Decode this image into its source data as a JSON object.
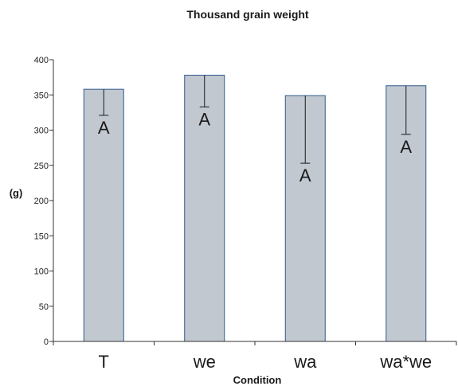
{
  "chart_data": {
    "type": "bar",
    "title": "Thousand grain weight",
    "xlabel": "Condition",
    "ylabel": "(g)",
    "ylim": [
      0,
      400
    ],
    "yticks": [
      0,
      50,
      100,
      150,
      200,
      250,
      300,
      350,
      400
    ],
    "categories": [
      "T",
      "we",
      "wa",
      "wa*we"
    ],
    "values": [
      358,
      378,
      349,
      363
    ],
    "error_low": [
      321,
      333,
      253,
      294
    ],
    "bar_labels": [
      "A",
      "A",
      "A",
      "A"
    ],
    "grid": false,
    "legend": "none",
    "colors": {
      "bar_fill": "#c2c8d0",
      "bar_stroke": "#2f5a8c",
      "axis": "#333333",
      "error_bar": "#1a1a1a"
    }
  }
}
